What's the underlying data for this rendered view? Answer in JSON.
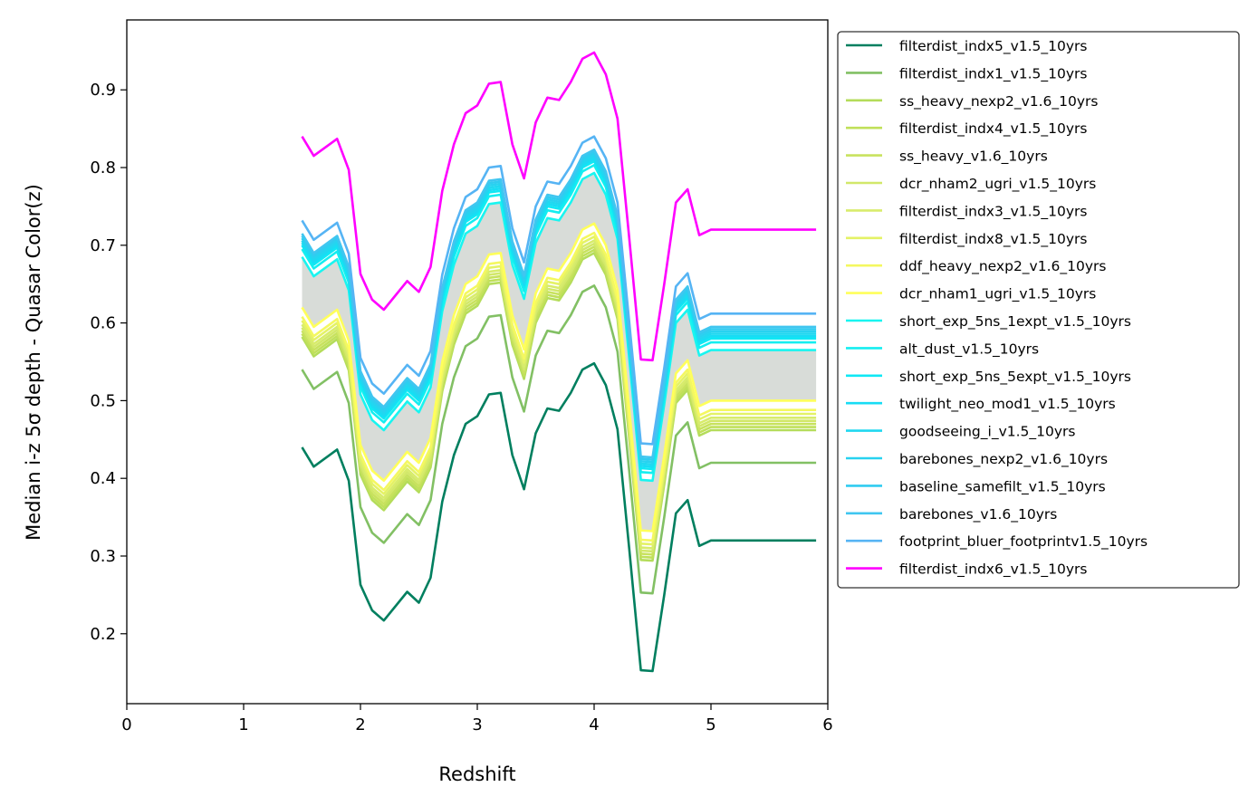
{
  "chart_data": {
    "type": "line",
    "xlabel": "Redshift",
    "ylabel": "Median i-z 5σ depth - Quasar Color(z)",
    "xlim": [
      0,
      6
    ],
    "ylim": [
      0.11,
      0.99
    ],
    "xticks": [
      "0",
      "1",
      "2",
      "3",
      "4",
      "5",
      "6"
    ],
    "yticks": [
      "0.2",
      "0.3",
      "0.4",
      "0.5",
      "0.6",
      "0.7",
      "0.8",
      "0.9"
    ],
    "grid": false,
    "legend_position": "outside right, top",
    "band_color": "#d8dcd8",
    "x": [
      1.5,
      1.6,
      1.8,
      1.9,
      2.0,
      2.1,
      2.2,
      2.4,
      2.5,
      2.6,
      2.7,
      2.8,
      2.9,
      3.0,
      3.1,
      3.2,
      3.3,
      3.4,
      3.5,
      3.6,
      3.7,
      3.8,
      3.9,
      4.0,
      4.1,
      4.2,
      4.3,
      4.4,
      4.5,
      4.6,
      4.7,
      4.8,
      4.9,
      5.0,
      5.9
    ],
    "base_values": [
      0.44,
      0.415,
      0.437,
      0.397,
      0.263,
      0.23,
      0.217,
      0.254,
      0.24,
      0.272,
      0.37,
      0.43,
      0.47,
      0.48,
      0.508,
      0.51,
      0.43,
      0.386,
      0.458,
      0.49,
      0.487,
      0.51,
      0.54,
      0.548,
      0.52,
      0.463,
      0.31,
      0.153,
      0.152,
      0.25,
      0.355,
      0.372,
      0.313,
      0.32,
      0.32
    ],
    "series": [
      {
        "name": "filterdist_indx5_v1.5_10yrs",
        "color": "#007f5f",
        "offset": 0.0
      },
      {
        "name": "filterdist_indx1_v1.5_10yrs",
        "color": "#82c064",
        "offset": 0.1
      },
      {
        "name": "ss_heavy_nexp2_v1.6_10yrs",
        "color": "#b4dc5a",
        "offset": 0.142
      },
      {
        "name": "filterdist_indx4_v1.5_10yrs",
        "color": "#c0e05a",
        "offset": 0.146
      },
      {
        "name": "ss_heavy_v1.6_10yrs",
        "color": "#c8e25e",
        "offset": 0.15
      },
      {
        "name": "dcr_nham2_ugri_v1.5_10yrs",
        "color": "#d2e86a",
        "offset": 0.154
      },
      {
        "name": "filterdist_indx3_v1.5_10yrs",
        "color": "#d8ec6c",
        "offset": 0.158
      },
      {
        "name": "filterdist_indx8_v1.5_10yrs",
        "color": "#e4f266",
        "offset": 0.163
      },
      {
        "name": "ddf_heavy_nexp2_v1.6_10yrs",
        "color": "#f4f860",
        "offset": 0.168
      },
      {
        "name": "dcr_nham1_ugri_v1.5_10yrs",
        "color": "#ffff5a",
        "offset": 0.18
      },
      {
        "name": "short_exp_5ns_1expt_v1.5_10yrs",
        "color": "#19f5f0",
        "offset": 0.245
      },
      {
        "name": "alt_dust_v1.5_10yrs",
        "color": "#14eef0",
        "offset": 0.255
      },
      {
        "name": "short_exp_5ns_5expt_v1.5_10yrs",
        "color": "#10e8f4",
        "offset": 0.26
      },
      {
        "name": "twilight_neo_mod1_v1.5_10yrs",
        "color": "#18dcf4",
        "offset": 0.263
      },
      {
        "name": "goodseeing_i_v1.5_10yrs",
        "color": "#20d8f0",
        "offset": 0.266
      },
      {
        "name": "barebones_nexp2_v1.6_10yrs",
        "color": "#28d2f0",
        "offset": 0.269
      },
      {
        "name": "baseline_samefilt_v1.5_10yrs",
        "color": "#30ccf0",
        "offset": 0.272
      },
      {
        "name": "barebones_v1.6_10yrs",
        "color": "#40c6f0",
        "offset": 0.275
      },
      {
        "name": "footprint_bluer_footprintv1.5_10yrs",
        "color": "#56b4f4",
        "offset": 0.292
      },
      {
        "name": "filterdist_indx6_v1.5_10yrs",
        "color": "#ff00ff",
        "offset": 0.4
      }
    ]
  }
}
